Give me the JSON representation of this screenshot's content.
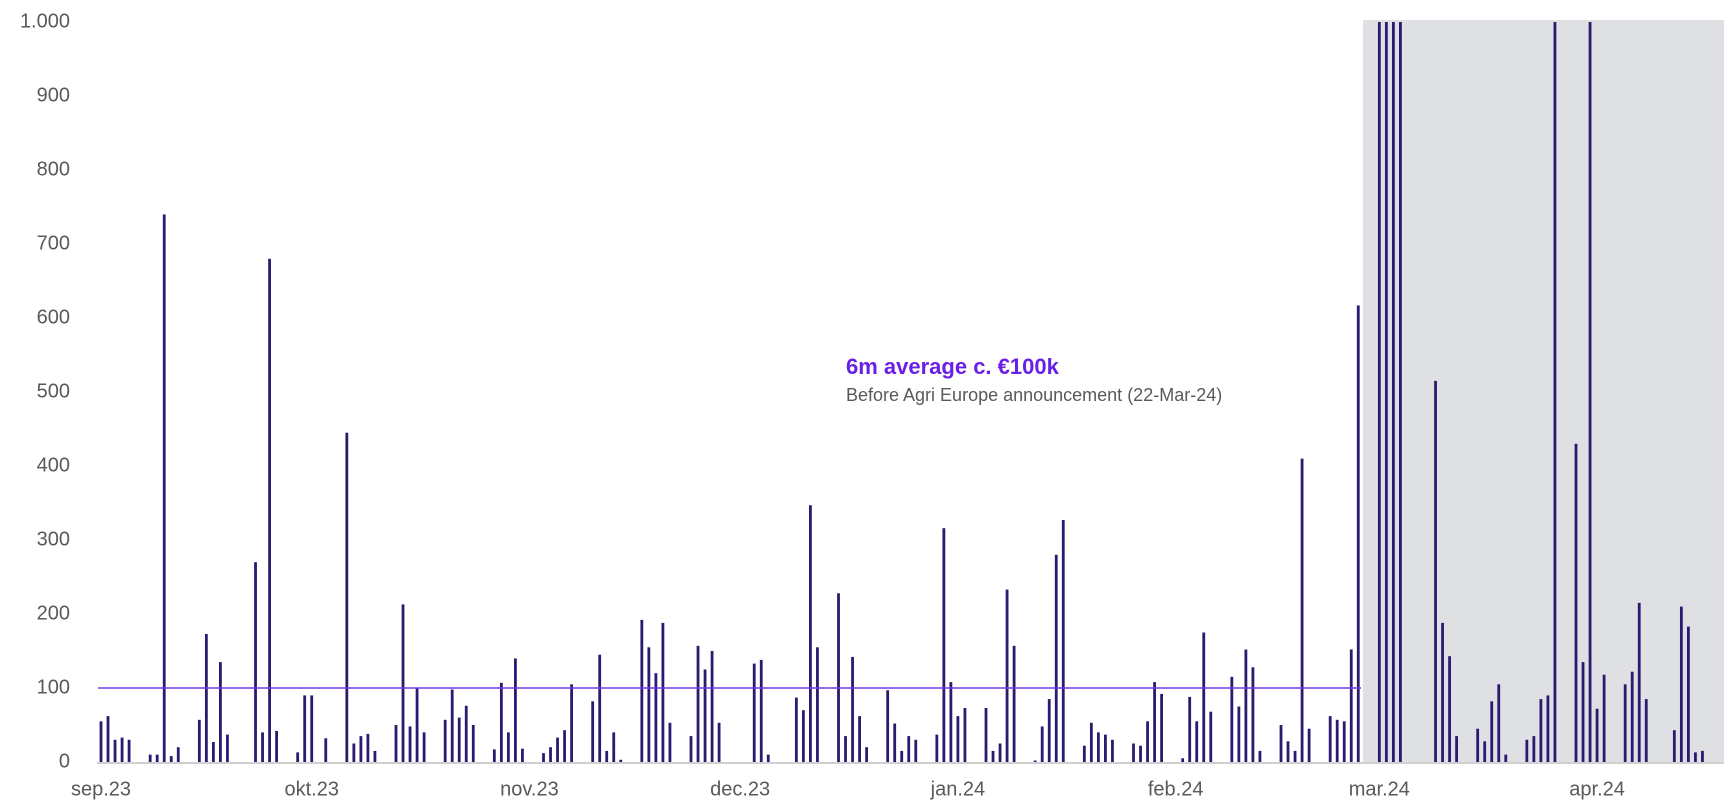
{
  "chart_data": {
    "type": "bar",
    "annotation_title": "6m average c. €100k",
    "annotation_subtitle": "Before Agri Europe announcement (22-Mar-24)",
    "average": 100,
    "color": "#2b1a70",
    "average_color": "#6a3de8",
    "categories": [
      "sep.23",
      null,
      null,
      null,
      null,
      null,
      null,
      null,
      null,
      null,
      null,
      null,
      null,
      null,
      null,
      null,
      null,
      null,
      null,
      null,
      null,
      null,
      null,
      null,
      null,
      null,
      null,
      null,
      null,
      null,
      "okt.23",
      null,
      null,
      null,
      null,
      null,
      null,
      null,
      null,
      null,
      null,
      null,
      null,
      null,
      null,
      null,
      null,
      null,
      null,
      null,
      null,
      null,
      null,
      null,
      null,
      null,
      null,
      null,
      null,
      null,
      null,
      "nov.23",
      null,
      null,
      null,
      null,
      null,
      null,
      null,
      null,
      null,
      null,
      null,
      null,
      null,
      null,
      null,
      null,
      null,
      null,
      null,
      null,
      null,
      null,
      null,
      null,
      null,
      null,
      null,
      null,
      null,
      "dec.23",
      null,
      null,
      null,
      null,
      null,
      null,
      null,
      null,
      null,
      null,
      null,
      null,
      null,
      null,
      null,
      null,
      null,
      null,
      null,
      null,
      null,
      null,
      null,
      null,
      null,
      null,
      null,
      null,
      null,
      null,
      "jan.24",
      null,
      null,
      null,
      null,
      null,
      null,
      null,
      null,
      null,
      null,
      null,
      null,
      null,
      null,
      null,
      null,
      null,
      null,
      null,
      null,
      null,
      null,
      null,
      null,
      null,
      null,
      null,
      null,
      null,
      null,
      "feb.24",
      null,
      null,
      null,
      null,
      null,
      null,
      null,
      null,
      null,
      null,
      null,
      null,
      null,
      null,
      null,
      null,
      null,
      null,
      null,
      null,
      null,
      null,
      null,
      null,
      null,
      null,
      null,
      null,
      "mar.24",
      null,
      null,
      null,
      null,
      null,
      null,
      null,
      null,
      null,
      null,
      null,
      null,
      null,
      null,
      null,
      null,
      null,
      null,
      null,
      null,
      null,
      null,
      null,
      null,
      null,
      null,
      null,
      null,
      null,
      null,
      "apr.24",
      null,
      null,
      null,
      null,
      null,
      null,
      null,
      null,
      null,
      null,
      null,
      null,
      null,
      null,
      null,
      null,
      null
    ],
    "values": [
      55,
      62,
      30,
      33,
      30,
      null,
      null,
      10,
      10,
      740,
      8,
      20,
      null,
      null,
      57,
      173,
      27,
      135,
      37,
      null,
      null,
      null,
      270,
      40,
      680,
      42,
      null,
      null,
      13,
      90,
      90,
      null,
      32,
      null,
      null,
      445,
      25,
      35,
      38,
      15,
      null,
      null,
      50,
      213,
      48,
      100,
      40,
      null,
      null,
      57,
      98,
      60,
      76,
      50,
      null,
      null,
      17,
      107,
      40,
      140,
      18,
      null,
      null,
      12,
      20,
      33,
      43,
      105,
      null,
      null,
      82,
      145,
      15,
      40,
      3,
      null,
      null,
      192,
      155,
      120,
      188,
      53,
      null,
      null,
      35,
      157,
      125,
      150,
      53,
      null,
      null,
      null,
      null,
      133,
      138,
      10,
      null,
      null,
      null,
      87,
      70,
      347,
      155,
      null,
      null,
      228,
      35,
      142,
      62,
      20,
      null,
      null,
      97,
      52,
      15,
      35,
      30,
      null,
      null,
      37,
      316,
      108,
      62,
      73,
      null,
      null,
      73,
      15,
      25,
      233,
      157,
      null,
      null,
      2,
      48,
      85,
      280,
      327,
      null,
      null,
      22,
      53,
      40,
      37,
      30,
      null,
      null,
      25,
      22,
      55,
      108,
      92,
      null,
      null,
      5,
      88,
      55,
      175,
      68,
      null,
      null,
      115,
      75,
      152,
      128,
      15,
      null,
      null,
      50,
      28,
      15,
      410,
      45,
      null,
      null,
      62,
      57,
      55,
      152,
      617,
      null,
      null,
      1000,
      1000,
      1000,
      1000,
      null,
      null,
      null,
      null,
      515,
      188,
      143,
      35,
      null,
      null,
      45,
      28,
      82,
      105,
      10,
      null,
      null,
      30,
      35,
      85,
      90,
      1000,
      null,
      null,
      430,
      135,
      1000,
      72,
      118,
      null,
      null,
      105,
      122,
      215,
      85,
      null,
      null,
      null,
      43,
      210,
      183,
      13,
      15,
      null,
      null
    ],
    "ylim": [
      0,
      1000
    ],
    "yticks": [
      0,
      100,
      200,
      300,
      400,
      500,
      600,
      700,
      800,
      900,
      {
        "value": 1000,
        "label": "1.000"
      }
    ],
    "grid": false
  }
}
